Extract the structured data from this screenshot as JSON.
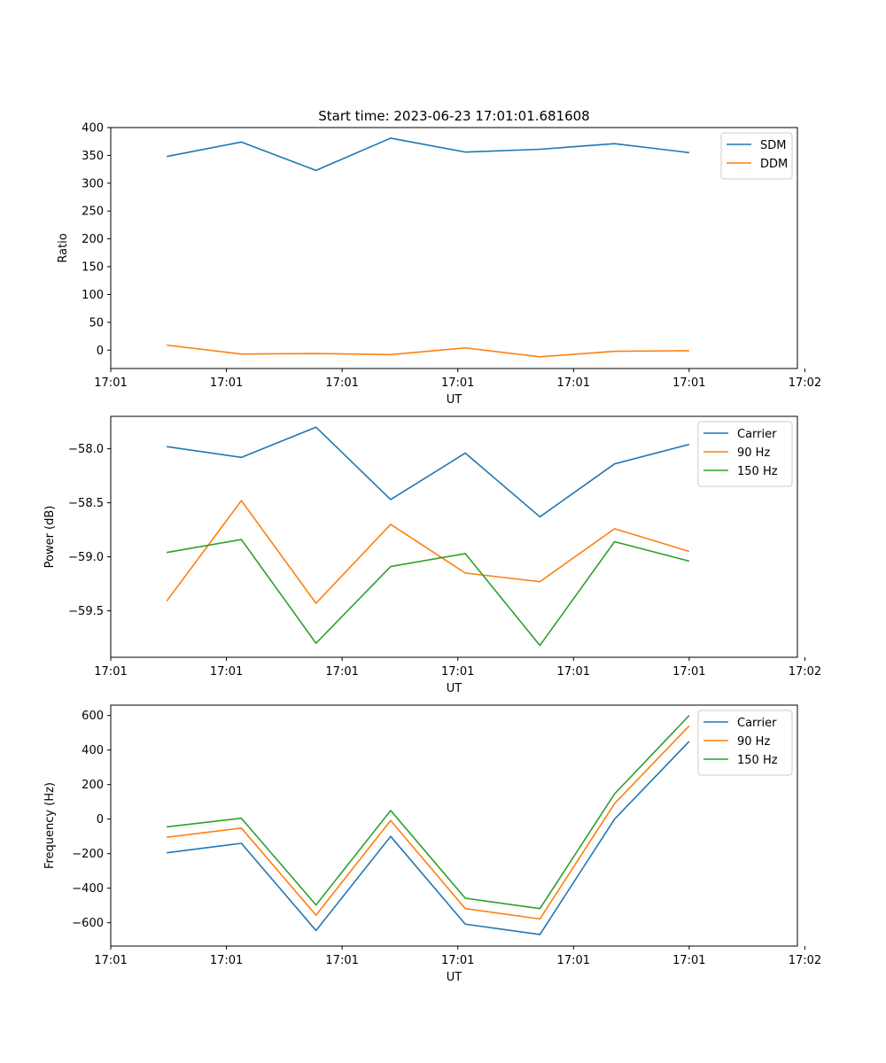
{
  "chart_data": [
    {
      "type": "line",
      "title": "Start time: 2023-06-23 17:01:01.681608",
      "xlabel": "UT",
      "ylabel": "Ratio",
      "xlim": [
        0,
        9.2
      ],
      "x": [
        0.75,
        1.75,
        2.75,
        3.75,
        4.75,
        5.75,
        6.75,
        7.75
      ],
      "xticks": [
        0,
        1.55,
        3.1,
        4.65,
        6.2,
        7.75,
        9.3
      ],
      "xtick_labels": [
        "17:01",
        "17:01",
        "17:01",
        "17:01",
        "17:01",
        "17:01",
        "17:02"
      ],
      "ylim": [
        -33,
        400
      ],
      "yticks": [
        0,
        50,
        100,
        150,
        200,
        250,
        300,
        350,
        400
      ],
      "ytick_labels": [
        "0",
        "50",
        "100",
        "150",
        "200",
        "250",
        "300",
        "350",
        "400"
      ],
      "legend_position": "top-right",
      "series": [
        {
          "name": "SDM",
          "color": "#1f77b4",
          "values": [
            348,
            374,
            323,
            381,
            356,
            361,
            371,
            355
          ]
        },
        {
          "name": "DDM",
          "color": "#ff7f0e",
          "values": [
            9,
            -7,
            -6,
            -8,
            4,
            -12,
            -2,
            -1
          ]
        }
      ],
      "grid": false
    },
    {
      "type": "line",
      "xlabel": "UT",
      "ylabel": "Power (dB)",
      "xlim": [
        0,
        9.2
      ],
      "x": [
        0.75,
        1.75,
        2.75,
        3.75,
        4.75,
        5.75,
        6.75,
        7.75
      ],
      "xticks": [
        0,
        1.55,
        3.1,
        4.65,
        6.2,
        7.75,
        9.3
      ],
      "xtick_labels": [
        "17:01",
        "17:01",
        "17:01",
        "17:01",
        "17:01",
        "17:01",
        "17:02"
      ],
      "ylim": [
        -59.93,
        -57.7
      ],
      "yticks": [
        -59.5,
        -59.0,
        -58.5,
        -58.0
      ],
      "ytick_labels": [
        "−59.5",
        "−59.0",
        "−58.5",
        "−58.0"
      ],
      "legend_position": "top-right",
      "series": [
        {
          "name": "Carrier",
          "color": "#1f77b4",
          "values": [
            -57.98,
            -58.08,
            -57.8,
            -58.47,
            -58.04,
            -58.63,
            -58.14,
            -57.96
          ]
        },
        {
          "name": "90 Hz",
          "color": "#ff7f0e",
          "values": [
            -59.41,
            -58.48,
            -59.43,
            -58.7,
            -59.15,
            -59.23,
            -58.74,
            -58.95
          ]
        },
        {
          "name": "150 Hz",
          "color": "#2ca02c",
          "values": [
            -58.96,
            -58.84,
            -59.8,
            -59.09,
            -58.97,
            -59.82,
            -58.86,
            -59.04
          ]
        }
      ],
      "grid": false
    },
    {
      "type": "line",
      "xlabel": "UT",
      "ylabel": "Frequency (Hz)",
      "xlim": [
        0,
        9.2
      ],
      "x": [
        0.75,
        1.75,
        2.75,
        3.75,
        4.75,
        5.75,
        6.75,
        7.75
      ],
      "xticks": [
        0,
        1.55,
        3.1,
        4.65,
        6.2,
        7.75,
        9.3
      ],
      "xtick_labels": [
        "17:01",
        "17:01",
        "17:01",
        "17:01",
        "17:01",
        "17:01",
        "17:02"
      ],
      "ylim": [
        -735,
        660
      ],
      "yticks": [
        -600,
        -400,
        -200,
        0,
        200,
        400,
        600
      ],
      "ytick_labels": [
        "−600",
        "−400",
        "−200",
        "0",
        "200",
        "400",
        "600"
      ],
      "legend_position": "top-right",
      "series": [
        {
          "name": "Carrier",
          "color": "#1f77b4",
          "values": [
            -195,
            -140,
            -645,
            -100,
            -608,
            -668,
            0,
            450
          ]
        },
        {
          "name": "90 Hz",
          "color": "#ff7f0e",
          "values": [
            -105,
            -52,
            -556,
            -8,
            -518,
            -578,
            90,
            540
          ]
        },
        {
          "name": "150 Hz",
          "color": "#2ca02c",
          "values": [
            -45,
            5,
            -497,
            50,
            -458,
            -518,
            146,
            600
          ]
        }
      ],
      "grid": false
    }
  ]
}
